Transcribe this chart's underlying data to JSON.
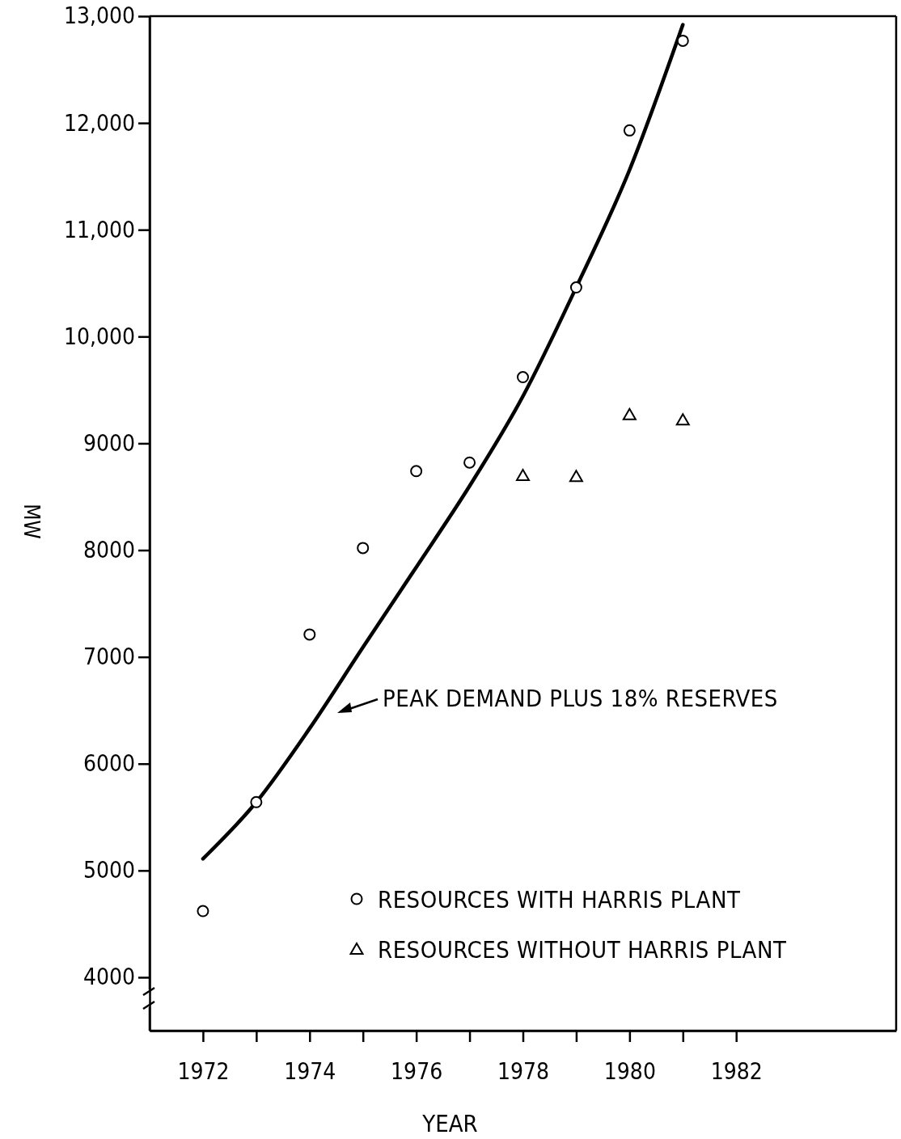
{
  "chart_data": {
    "type": "scatter",
    "xlabel": "YEAR",
    "ylabel": "MW",
    "xlim": [
      1971,
      1985
    ],
    "ylim": [
      3500,
      13000
    ],
    "xticks": [
      1972,
      {
        "value": 1973,
        "label": null
      },
      1974,
      {
        "value": 1975,
        "label": null
      },
      1976,
      {
        "value": 1977,
        "label": null
      },
      1978,
      {
        "value": 1979,
        "label": null
      },
      1980,
      {
        "value": 1981,
        "label": null
      },
      1982
    ],
    "yticks": [
      4000,
      5000,
      6000,
      7000,
      8000,
      9000,
      {
        "value": 10000,
        "label": "10,000"
      },
      {
        "value": 11000,
        "label": "11,000"
      },
      {
        "value": 12000,
        "label": "12,000"
      },
      {
        "value": 13000,
        "label": "13,000"
      }
    ],
    "grid": false,
    "legend": "bottom right",
    "annotations": [
      "PEAK DEMAND PLUS 18% RESERVES"
    ],
    "series": [
      {
        "type": "line",
        "color": "#000000",
        "marker": "none",
        "line_style": "solid",
        "x": [
          1972,
          1973,
          1974,
          1975,
          1976,
          1977,
          1978,
          1979,
          1980,
          1981
        ],
        "values": [
          5110,
          5640,
          6330,
          7090,
          7840,
          8600,
          9440,
          10460,
          11560,
          12920
        ]
      },
      {
        "name": "RESOURCES WITH HARRIS PLANT",
        "color": "#000000",
        "marker": "circle",
        "x": [
          1972,
          1973,
          1974,
          1975,
          1976,
          1977,
          1978,
          1979,
          1980,
          1981
        ],
        "values": [
          4620,
          5640,
          7210,
          8020,
          8740,
          8820,
          9620,
          10460,
          11930,
          12770
        ]
      },
      {
        "name": "RESOURCES WITHOUT HARRIS PLANT",
        "color": "#000000",
        "marker": "triangle",
        "x": [
          1978,
          1979,
          1980,
          1981
        ],
        "values": [
          8700,
          8690,
          9270,
          9220
        ]
      }
    ]
  }
}
